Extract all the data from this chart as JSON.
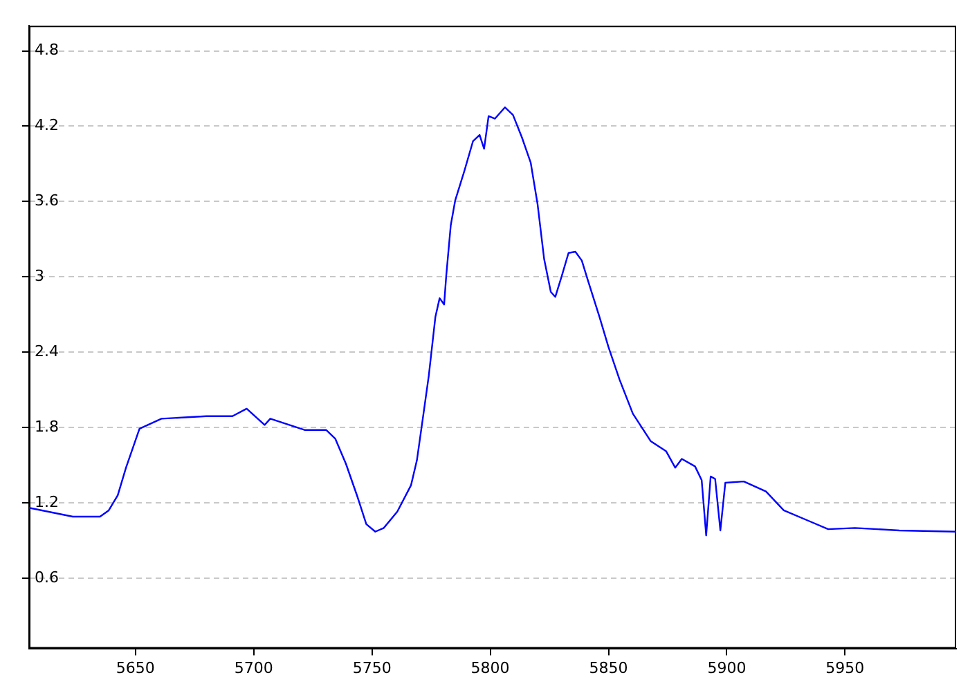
{
  "chart_data": {
    "type": "line",
    "xlim": [
      5605,
      5997
    ],
    "ylim": [
      0.04,
      5.0
    ],
    "xticks": [
      5650,
      5700,
      5750,
      5800,
      5850,
      5900,
      5950
    ],
    "yticks": [
      0.6,
      1.2,
      1.8,
      2.4,
      3,
      3.6,
      4.2,
      4.8
    ],
    "grid": "y",
    "legend": false,
    "marker": "none",
    "line_style": "solid",
    "series": [
      {
        "color": "#0000ff",
        "x": [
          5605,
          5623.5,
          5635,
          5638.7,
          5642.5,
          5646,
          5651.7,
          5661,
          5680,
          5691,
          5697,
          5704.6,
          5707,
          5721.5,
          5730.6,
          5734.5,
          5739,
          5744,
          5747.6,
          5751.4,
          5755,
          5760.7,
          5766.5,
          5769,
          5772,
          5774,
          5776.8,
          5778.6,
          5780.5,
          5781.4,
          5783.3,
          5785.2,
          5789,
          5792.7,
          5795.5,
          5797.4,
          5799.3,
          5802,
          5806.2,
          5809.6,
          5813.4,
          5817.1,
          5820,
          5822.8,
          5825.6,
          5827.5,
          5830.3,
          5833.1,
          5836,
          5838.7,
          5841.5,
          5846.2,
          5850,
          5854.7,
          5860.3,
          5867.9,
          5874.4,
          5878.2,
          5881,
          5886.6,
          5889.4,
          5891.3,
          5893.2,
          5895.1,
          5897.3,
          5899.4,
          5907.2,
          5916.6,
          5924.1,
          5935.4,
          5942.9,
          5954.2,
          5973,
          5997
        ],
        "values": [
          1.16,
          1.09,
          1.09,
          1.14,
          1.26,
          1.48,
          1.79,
          1.87,
          1.89,
          1.89,
          1.95,
          1.82,
          1.87,
          1.78,
          1.78,
          1.71,
          1.51,
          1.24,
          1.03,
          0.97,
          1.0,
          1.13,
          1.34,
          1.54,
          1.94,
          2.21,
          2.68,
          2.83,
          2.78,
          3.01,
          3.41,
          3.61,
          3.84,
          4.08,
          4.13,
          4.02,
          4.28,
          4.26,
          4.35,
          4.29,
          4.11,
          3.91,
          3.58,
          3.14,
          2.88,
          2.84,
          3.01,
          3.19,
          3.2,
          3.13,
          2.96,
          2.68,
          2.44,
          2.18,
          1.91,
          1.69,
          1.61,
          1.48,
          1.55,
          1.49,
          1.38,
          0.94,
          1.41,
          1.39,
          0.98,
          1.36,
          1.37,
          1.29,
          1.14,
          1.05,
          0.99,
          1.0,
          0.98,
          0.97
        ]
      }
    ]
  }
}
